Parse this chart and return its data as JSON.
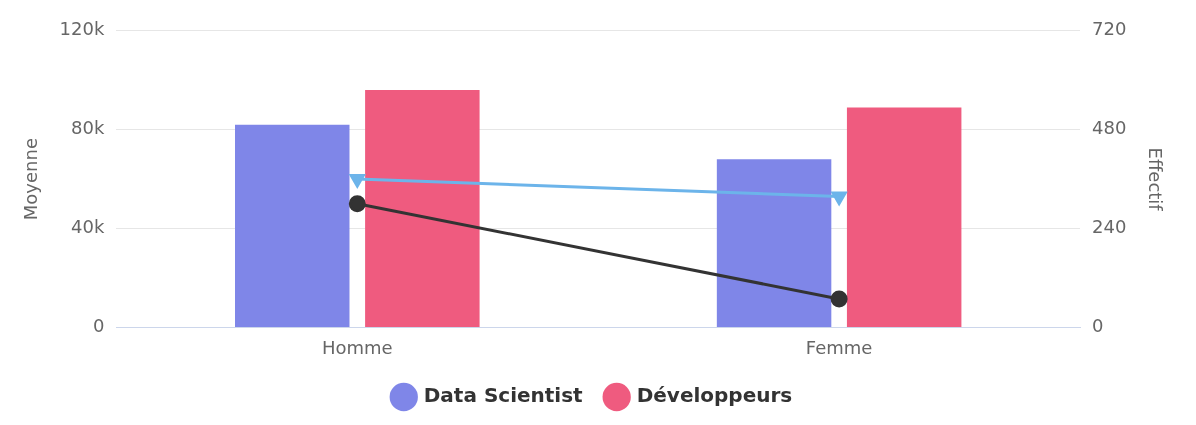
{
  "chart_data": {
    "type": "bar",
    "categories": [
      "Homme",
      "Femme"
    ],
    "ylabel": "Moyenne",
    "y2label": "Effectif",
    "series": [
      {
        "name": "Data Scientist",
        "color": "#7f86e8",
        "values": [
          82000,
          68000
        ]
      },
      {
        "name": "Développeurs",
        "color": "#ef5b7f",
        "values": [
          96000,
          89000
        ]
      },
      {
        "type": "line",
        "axis": "y2",
        "color": "#333333",
        "marker": "circle",
        "values": [
          300,
          69
        ]
      },
      {
        "type": "line",
        "axis": "y2",
        "color": "#6cb4ea",
        "marker": "triangle",
        "values": [
          360,
          318
        ]
      }
    ],
    "ylim": [
      0,
      120000
    ],
    "yticks": [
      {
        "value": 0,
        "label": "0"
      },
      {
        "value": 40000,
        "label": "40k"
      },
      {
        "value": 80000,
        "label": "80k"
      },
      {
        "value": 120000,
        "label": "120k"
      }
    ],
    "y2lim": [
      0,
      720
    ],
    "y2ticks": [
      0,
      240,
      480,
      720
    ],
    "grid": "y",
    "legend": "bottom"
  }
}
